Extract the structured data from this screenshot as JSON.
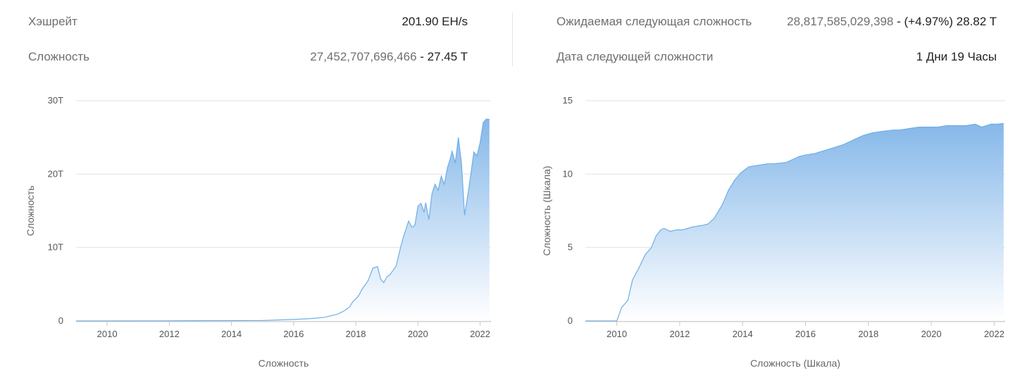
{
  "stats": {
    "hashrate": {
      "label": "Хэшрейт",
      "value": "201.90 EH/s"
    },
    "difficulty": {
      "label": "Сложность",
      "value_raw": "27,452,707,696,466",
      "value_short": " - 27.45 T"
    },
    "next_difficulty": {
      "label": "Ожидаемая следующая сложность",
      "value_raw": "28,817,585,029,398",
      "value_short": " - (+4.97%) 28.82 T"
    },
    "next_date": {
      "label": "Дата следующей сложности",
      "value": "1 Дни 19 Часы"
    }
  },
  "colors": {
    "line": "#6faee6",
    "fill_top": "#7fb4e8",
    "fill_bottom": "#ffffff"
  },
  "chart_data": [
    {
      "type": "area",
      "ylabel": "Сложность",
      "xlabel": "Сложность",
      "x_ticks": [
        "2010",
        "2012",
        "2014",
        "2016",
        "2018",
        "2020",
        "2022"
      ],
      "y_ticks": [
        "0",
        "10T",
        "20T",
        "30T"
      ],
      "xlim": [
        2009.0,
        2022.35
      ],
      "ylim": [
        0,
        30
      ],
      "y_unit": "T",
      "grid": true,
      "x": [
        2009.0,
        2010.0,
        2012.0,
        2014.0,
        2015.0,
        2016.0,
        2016.5,
        2017.0,
        2017.4,
        2017.6,
        2017.8,
        2017.9,
        2018.0,
        2018.1,
        2018.2,
        2018.4,
        2018.55,
        2018.7,
        2018.8,
        2018.9,
        2019.0,
        2019.1,
        2019.3,
        2019.45,
        2019.55,
        2019.7,
        2019.8,
        2019.9,
        2020.0,
        2020.1,
        2020.2,
        2020.25,
        2020.35,
        2020.45,
        2020.55,
        2020.65,
        2020.75,
        2020.85,
        2020.95,
        2021.0,
        2021.1,
        2021.2,
        2021.3,
        2021.4,
        2021.5,
        2021.6,
        2021.7,
        2021.8,
        2021.9,
        2022.0,
        2022.1,
        2022.2,
        2022.3
      ],
      "y": [
        0,
        0,
        0.02,
        0.05,
        0.06,
        0.2,
        0.3,
        0.5,
        0.9,
        1.3,
        1.9,
        2.6,
        3.0,
        3.5,
        4.3,
        5.5,
        7.2,
        7.4,
        5.7,
        5.2,
        6.0,
        6.3,
        7.5,
        10.2,
        11.7,
        13.6,
        12.8,
        13.0,
        15.6,
        16.0,
        14.8,
        16.1,
        13.8,
        17.3,
        18.6,
        17.8,
        19.7,
        18.6,
        20.9,
        21.5,
        23.1,
        21.5,
        25.0,
        21.5,
        14.4,
        17.0,
        19.9,
        23.0,
        22.5,
        24.3,
        27.0,
        27.5,
        27.45
      ]
    },
    {
      "type": "area",
      "ylabel": "Сложность (Шкала)",
      "xlabel": "Сложность (Шкала)",
      "x_ticks": [
        "2010",
        "2012",
        "2014",
        "2016",
        "2018",
        "2020",
        "2022"
      ],
      "y_ticks": [
        "0",
        "5",
        "10",
        "15"
      ],
      "xlim": [
        2009.0,
        2022.35
      ],
      "ylim": [
        0,
        15
      ],
      "grid": true,
      "x": [
        2009.0,
        2010.0,
        2010.05,
        2010.15,
        2010.35,
        2010.5,
        2010.7,
        2010.9,
        2011.1,
        2011.25,
        2011.4,
        2011.5,
        2011.7,
        2011.9,
        2012.1,
        2012.4,
        2012.7,
        2012.9,
        2013.1,
        2013.35,
        2013.55,
        2013.75,
        2013.95,
        2014.2,
        2014.5,
        2014.8,
        2015.0,
        2015.4,
        2015.8,
        2016.0,
        2016.3,
        2016.6,
        2016.9,
        2017.2,
        2017.5,
        2017.8,
        2018.1,
        2018.4,
        2018.8,
        2019.0,
        2019.3,
        2019.6,
        2019.9,
        2020.2,
        2020.5,
        2020.8,
        2021.1,
        2021.4,
        2021.6,
        2021.9,
        2022.1,
        2022.3
      ],
      "y": [
        0,
        0,
        0.3,
        0.9,
        1.4,
        2.8,
        3.6,
        4.5,
        5.0,
        5.8,
        6.2,
        6.3,
        6.1,
        6.2,
        6.2,
        6.4,
        6.5,
        6.6,
        7.0,
        7.9,
        8.9,
        9.6,
        10.1,
        10.5,
        10.6,
        10.7,
        10.7,
        10.8,
        11.2,
        11.3,
        11.4,
        11.6,
        11.8,
        12.0,
        12.3,
        12.6,
        12.8,
        12.9,
        13.0,
        13.0,
        13.1,
        13.2,
        13.2,
        13.2,
        13.3,
        13.3,
        13.3,
        13.4,
        13.2,
        13.4,
        13.4,
        13.45
      ]
    }
  ]
}
